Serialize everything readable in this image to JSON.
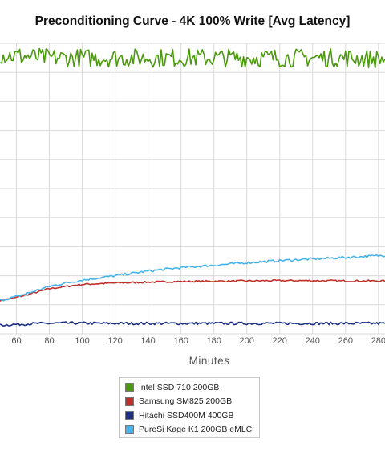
{
  "chart_data": {
    "type": "line",
    "title": "Preconditioning Curve - 4K 100% Write [Avg Latency]",
    "xlabel": "Minutes",
    "ylabel": "",
    "x_visible_range": [
      50,
      284
    ],
    "x_ticks": [
      "60",
      "80",
      "100",
      "120",
      "140",
      "160",
      "180",
      "200",
      "220",
      "240",
      "260",
      "280"
    ],
    "grid": true,
    "legend_position": "bottom",
    "series": [
      {
        "name": "Intel SSD 710 200GB",
        "color": "#4a9a0c",
        "x": [
          50,
          80,
          110,
          140,
          170,
          200,
          230,
          260,
          284
        ],
        "y": [
          0.96,
          0.95,
          0.95,
          0.95,
          0.95,
          0.95,
          0.95,
          0.95,
          0.945
        ],
        "noise": 0.032
      },
      {
        "name": "Samsung SM825 200GB",
        "color": "#c0302b",
        "x": [
          50,
          60,
          70,
          80,
          90,
          100,
          120,
          140,
          160,
          180,
          200,
          220,
          240,
          260,
          284
        ],
        "y": [
          0.115,
          0.125,
          0.14,
          0.155,
          0.163,
          0.17,
          0.175,
          0.178,
          0.18,
          0.181,
          0.182,
          0.183,
          0.183,
          0.182,
          0.182
        ],
        "noise": 0.0028
      },
      {
        "name": "Hitachi SSD400M 400GB",
        "color": "#1b2f84",
        "x": [
          50,
          70,
          90,
          120,
          150,
          180,
          210,
          240,
          270,
          284
        ],
        "y": [
          0.03,
          0.035,
          0.037,
          0.036,
          0.036,
          0.036,
          0.036,
          0.036,
          0.036,
          0.036
        ],
        "noise": 0.0045
      },
      {
        "name": "PureSi Kage K1 200GB eMLC",
        "color": "#47b3e6",
        "x": [
          50,
          60,
          70,
          80,
          90,
          100,
          120,
          140,
          160,
          180,
          200,
          220,
          240,
          260,
          284
        ],
        "y": [
          0.115,
          0.128,
          0.145,
          0.163,
          0.175,
          0.185,
          0.2,
          0.216,
          0.228,
          0.236,
          0.245,
          0.252,
          0.258,
          0.263,
          0.27
        ],
        "noise": 0.004
      }
    ]
  }
}
